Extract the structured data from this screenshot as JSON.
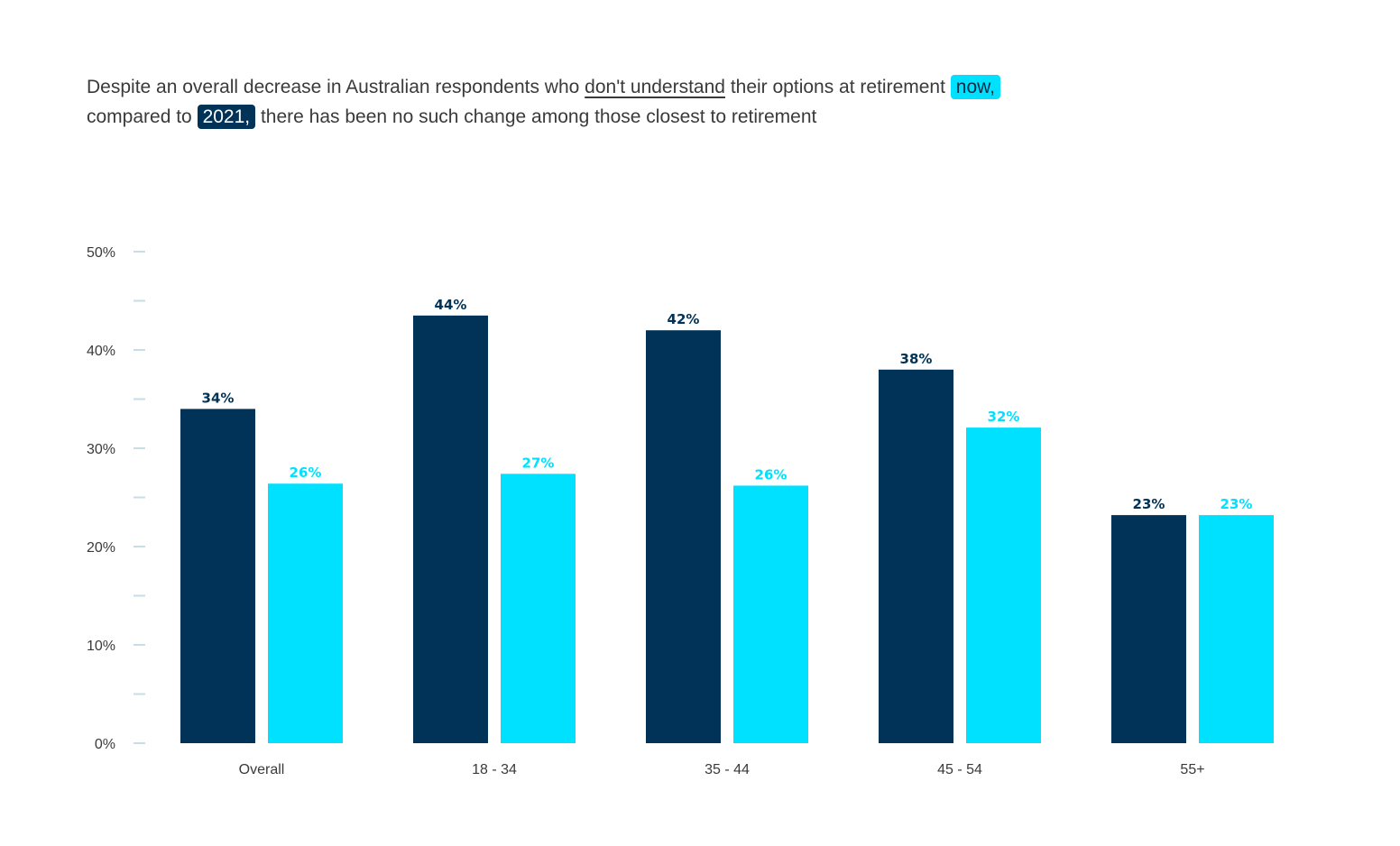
{
  "title": {
    "line1_before": "Despite an overall decrease in Australian respondents who ",
    "line1_underlined": "don't understand",
    "line1_after": " their options at retirement ",
    "line1_highlight": "now,",
    "line2_before": "compared to ",
    "line2_highlight": "2021,",
    "line2_after": " there has been no such change among those closest to retirement"
  },
  "colors": {
    "series_2021": "#003357",
    "series_now": "#00e1ff",
    "tick_mark": "#c9dde6",
    "text": "#3a3a3a"
  },
  "chart_data": {
    "type": "bar",
    "title": "Despite an overall decrease in Australian respondents who don't understand their options at retirement now, compared to 2021, there has been no such change among those closest to retirement",
    "xlabel": "",
    "ylabel": "",
    "ylim": [
      0,
      50
    ],
    "yticks": [
      0,
      10,
      20,
      30,
      40,
      50
    ],
    "ytick_labels": [
      "0%",
      "10%",
      "20%",
      "30%",
      "40%",
      "50%"
    ],
    "minor_ticks": [
      5,
      15,
      25,
      35,
      45
    ],
    "grid": false,
    "categories": [
      "Overall",
      "18 - 34",
      "35 - 44",
      "45 - 54",
      "55+"
    ],
    "series": [
      {
        "name": "2021",
        "values": [
          34,
          43.5,
          42,
          38,
          23.2
        ],
        "labels": [
          "34%",
          "44%",
          "42%",
          "38%",
          "23%"
        ]
      },
      {
        "name": "now",
        "values": [
          26.4,
          27.4,
          26.2,
          32.1,
          23.2
        ],
        "labels": [
          "26%",
          "27%",
          "26%",
          "32%",
          "23%"
        ]
      }
    ]
  }
}
